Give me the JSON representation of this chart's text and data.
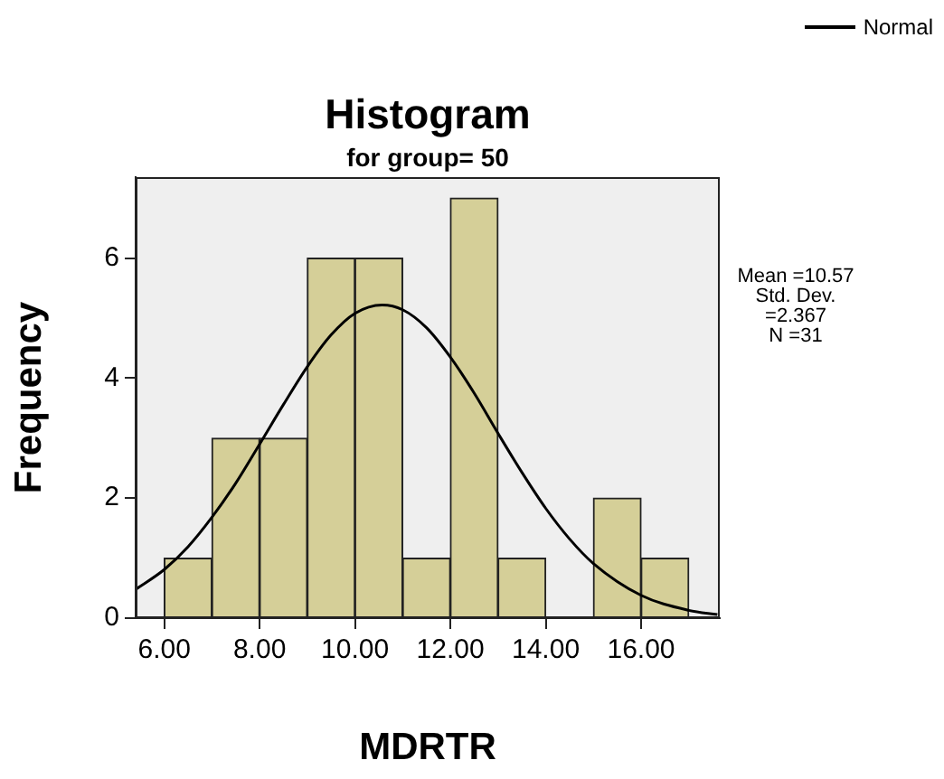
{
  "chart_data": {
    "type": "histogram",
    "title": "Histogram",
    "subtitle": "for group= 50",
    "xlabel": "MDRTR",
    "ylabel": "Frequency",
    "bins": [
      6,
      7,
      8,
      9,
      10,
      11,
      12,
      13,
      14,
      15,
      16,
      17
    ],
    "values": [
      1,
      3,
      3,
      6,
      6,
      1,
      7,
      1,
      0,
      2,
      1
    ],
    "color": "#d5cf98",
    "series": [
      {
        "name": "Normal",
        "type": "line",
        "color": "#000000",
        "x": [
          5.4,
          6,
          6.5,
          7,
          7.5,
          8,
          8.5,
          9,
          9.5,
          10,
          10.57,
          11,
          11.5,
          12,
          12.5,
          13,
          13.5,
          14,
          14.5,
          15,
          16,
          17,
          17.6
        ],
        "values": [
          0.48,
          0.81,
          1.19,
          1.68,
          2.25,
          2.9,
          3.56,
          4.19,
          4.72,
          5.08,
          5.22,
          5.14,
          4.84,
          4.35,
          3.75,
          3.08,
          2.43,
          1.83,
          1.32,
          0.91,
          0.38,
          0.13,
          0.06
        ]
      }
    ],
    "xlim": [
      5.4,
      17.65
    ],
    "xticks": [
      {
        "value": 6,
        "label": "6.00"
      },
      {
        "value": 8,
        "label": "8.00"
      },
      {
        "value": 10,
        "label": "10.00"
      },
      {
        "value": 12,
        "label": "12.00"
      },
      {
        "value": 14,
        "label": "14.00"
      },
      {
        "value": 16,
        "label": "16.00"
      }
    ],
    "ylim": [
      0,
      7.35
    ],
    "yticks": [
      0,
      2,
      4,
      6
    ],
    "grid": false,
    "legend": "top right",
    "marker": "none",
    "line_style": "solid",
    "annotations": [
      "Mean =10.57",
      "Std. Dev. =2.367",
      "N =31"
    ]
  }
}
